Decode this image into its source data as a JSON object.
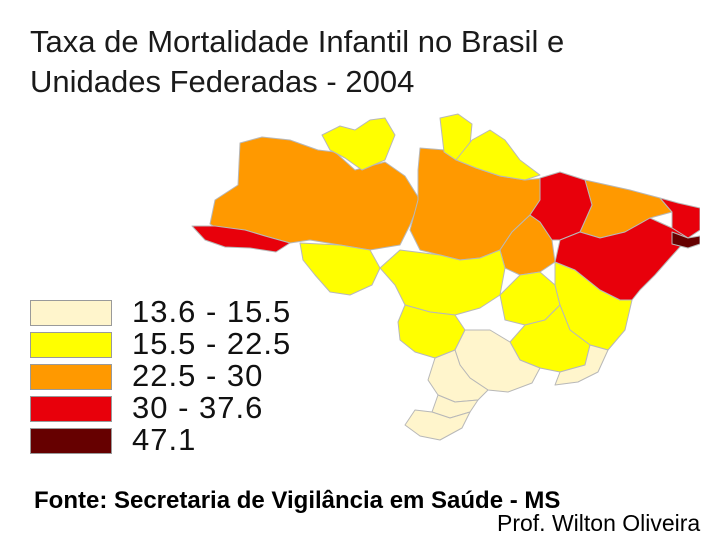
{
  "title": {
    "line1": "Taxa de Mortalidade Infantil no Brasil e",
    "line2": "Unidades Federadas - 2004"
  },
  "legend": [
    {
      "label": "13.6 - 15.5",
      "color": "#fff5cc"
    },
    {
      "label": "15.5 - 22.5",
      "color": "#ffff00"
    },
    {
      "label": "22.5 - 30",
      "color": "#ff9900"
    },
    {
      "label": "30 - 37.6",
      "color": "#e8000b"
    },
    {
      "label": "47.1",
      "color": "#660000"
    }
  ],
  "source": "Fonte: Secretaria de Vigilância em Saúde - MS",
  "author": "Prof. Wilton Oliveira"
}
